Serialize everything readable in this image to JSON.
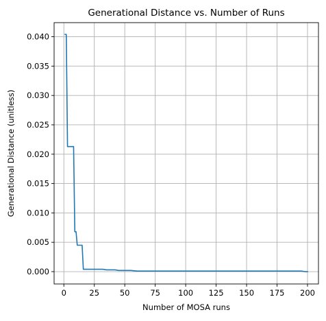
{
  "chart_data": {
    "type": "line",
    "title": "Generational Distance vs. Number of Runs",
    "xlabel": "Number of MOSA runs",
    "ylabel": "Generational Distance (unitless)",
    "xlim": [
      -8,
      209
    ],
    "ylim": [
      -0.0021,
      0.0424
    ],
    "xticks": [
      0,
      25,
      50,
      75,
      100,
      125,
      150,
      175,
      200
    ],
    "xtick_labels": [
      "0",
      "25",
      "50",
      "75",
      "100",
      "125",
      "150",
      "175",
      "200"
    ],
    "yticks": [
      0.0,
      0.005,
      0.01,
      0.015,
      0.02,
      0.025,
      0.03,
      0.035,
      0.04
    ],
    "ytick_labels": [
      "0.000",
      "0.005",
      "0.010",
      "0.015",
      "0.020",
      "0.025",
      "0.030",
      "0.035",
      "0.040"
    ],
    "grid": true,
    "series": [
      {
        "color": "#1f77b4",
        "x": [
          1,
          2,
          3,
          4,
          5,
          6,
          7,
          8,
          9,
          10,
          11,
          12,
          13,
          14,
          15,
          16,
          17,
          20,
          25,
          28,
          32,
          35,
          38,
          42,
          45,
          50,
          55,
          60,
          70,
          80,
          90,
          100,
          120,
          140,
          160,
          180,
          195,
          198,
          200
        ],
        "y": [
          0.0404,
          0.0404,
          0.0213,
          0.0213,
          0.0213,
          0.0213,
          0.0213,
          0.0213,
          0.0068,
          0.0068,
          0.0045,
          0.0045,
          0.0045,
          0.0045,
          0.0045,
          0.0004,
          0.0004,
          0.0004,
          0.0004,
          0.0004,
          0.0004,
          0.0003,
          0.0003,
          0.0003,
          0.0002,
          0.0002,
          0.0002,
          0.0001,
          0.0001,
          0.0001,
          0.0001,
          0.0001,
          0.0001,
          0.0001,
          0.0001,
          0.0001,
          0.0001,
          0.0,
          0.0
        ]
      }
    ]
  }
}
